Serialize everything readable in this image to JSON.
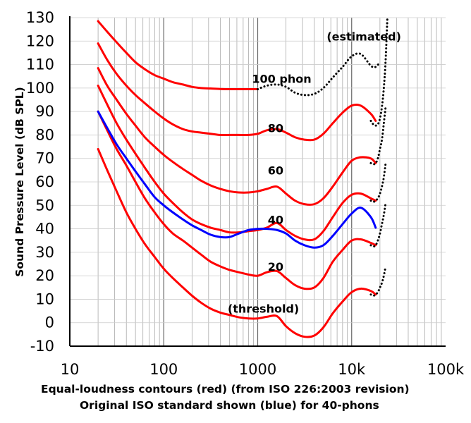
{
  "chart_data": {
    "type": "line",
    "xlabel": "Equal-loudness contours (red) (from ISO 226:2003 revision)",
    "xlabel_line2": "Original ISO standard shown (blue) for 40-phons",
    "ylabel": "Sound Pressure Level (dB SPL)",
    "x_scale": "log",
    "xlim": [
      10,
      100000
    ],
    "ylim": [
      -10,
      130
    ],
    "x_ticks": [
      10,
      100,
      1000,
      10000,
      100000
    ],
    "x_tick_labels": [
      "10",
      "100",
      "1000",
      "10k",
      "100k"
    ],
    "y_ticks": [
      -10,
      0,
      10,
      20,
      30,
      40,
      50,
      60,
      70,
      80,
      90,
      100,
      110,
      120,
      130
    ],
    "y_tick_labels": [
      "-10",
      "0",
      "10",
      "20",
      "30",
      "40",
      "50",
      "60",
      "70",
      "80",
      "90",
      "100",
      "110",
      "120",
      "130"
    ],
    "grid": true,
    "annotations": [
      {
        "text": "(estimated)",
        "x": 13500,
        "y": 122
      },
      {
        "text": "100 phon",
        "x": 1800,
        "y": 104
      },
      {
        "text": "80",
        "x": 1550,
        "y": 83
      },
      {
        "text": "60",
        "x": 1550,
        "y": 65
      },
      {
        "text": "40",
        "x": 1550,
        "y": 44
      },
      {
        "text": "20",
        "x": 1550,
        "y": 24
      },
      {
        "text": "(threshold)",
        "x": 1150,
        "y": 6
      }
    ],
    "series": [
      {
        "name": "",
        "color": "#ff0000",
        "style": "solid",
        "x": [
          20,
          25,
          31.5,
          40,
          50,
          63,
          80,
          100,
          125,
          160,
          200,
          250,
          315,
          400,
          500,
          630,
          800,
          1000,
          1250,
          1600,
          2000,
          2500,
          3150,
          4000,
          5000,
          6300,
          8000,
          10000,
          12500,
          16000,
          18000
        ],
        "y": [
          74,
          65,
          56,
          47,
          40,
          33.5,
          28,
          23,
          19,
          15,
          11.5,
          8.5,
          6,
          4.3,
          3.3,
          2.3,
          1.8,
          1.8,
          2.5,
          2.8,
          -1.5,
          -4.5,
          -6,
          -5.5,
          -2,
          4,
          9,
          13,
          14.5,
          13.5,
          12
        ]
      },
      {
        "name": "",
        "color": "#ff0000",
        "style": "solid",
        "x": [
          20,
          25,
          31.5,
          40,
          50,
          63,
          80,
          100,
          125,
          160,
          200,
          250,
          315,
          400,
          500,
          630,
          800,
          1000,
          1250,
          1600,
          2000,
          2500,
          3150,
          4000,
          5000,
          6300,
          8000,
          10000,
          12500,
          16000,
          18000
        ],
        "y": [
          90,
          82,
          74,
          67,
          60,
          53,
          47,
          42,
          38,
          35,
          32,
          29,
          26,
          24,
          22.5,
          21.5,
          20.5,
          20,
          21.5,
          22,
          19,
          16,
          14.5,
          15,
          19,
          26,
          31,
          35,
          35.5,
          34,
          33
        ]
      },
      {
        "name": "",
        "color": "#ff0000",
        "style": "solid",
        "x": [
          20,
          25,
          31.5,
          40,
          50,
          63,
          80,
          100,
          125,
          160,
          200,
          250,
          315,
          400,
          500,
          630,
          800,
          1000,
          1250,
          1600,
          2000,
          2500,
          3150,
          4000,
          5000,
          6300,
          8000,
          10000,
          12500,
          16000,
          18000
        ],
        "y": [
          101,
          93,
          85,
          78,
          72,
          66,
          60,
          55,
          51,
          47,
          44,
          42,
          40.5,
          39.5,
          38.5,
          38.5,
          39,
          39.5,
          40.5,
          42.5,
          39.5,
          37,
          35.5,
          35.5,
          39,
          45,
          51,
          54.5,
          55,
          53,
          52
        ]
      },
      {
        "name": "",
        "color": "#ff0000",
        "style": "solid",
        "x": [
          20,
          25,
          31.5,
          40,
          50,
          63,
          80,
          100,
          125,
          160,
          200,
          250,
          315,
          400,
          500,
          630,
          800,
          1000,
          1250,
          1600,
          2000,
          2500,
          3150,
          4000,
          5000,
          6300,
          8000,
          10000,
          12500,
          16000,
          18000
        ],
        "y": [
          108.5,
          101,
          95,
          89,
          84,
          79,
          75,
          71.5,
          68.5,
          65.5,
          63,
          60.5,
          58.5,
          57,
          56,
          55.5,
          55.5,
          56,
          57,
          58,
          55,
          52,
          50.5,
          50.5,
          53,
          58,
          64,
          69,
          70.5,
          70,
          68
        ]
      },
      {
        "name": "",
        "color": "#ff0000",
        "style": "solid",
        "x": [
          20,
          25,
          31.5,
          40,
          50,
          63,
          80,
          100,
          125,
          160,
          200,
          250,
          315,
          400,
          500,
          630,
          800,
          1000,
          1250,
          1600,
          2000,
          2500,
          3150,
          4000,
          5000,
          6300,
          8000,
          10000,
          12500,
          16000,
          18000
        ],
        "y": [
          119,
          112,
          106,
          101,
          97,
          93.5,
          90,
          87,
          84.5,
          82.5,
          81.5,
          81,
          80.5,
          80,
          80,
          80,
          80,
          80.5,
          82,
          82.5,
          81,
          79,
          78,
          78,
          80.5,
          85,
          89.5,
          92.5,
          92.5,
          89,
          86
        ]
      },
      {
        "name": "",
        "color": "#ff0000",
        "style": "solid",
        "x": [
          20,
          25,
          31.5,
          40,
          50,
          63,
          80,
          100,
          125,
          160,
          200,
          250,
          315,
          400,
          500,
          630,
          800,
          1000
        ],
        "y": [
          128.5,
          124,
          119.5,
          115,
          111,
          108,
          105.5,
          104,
          102.5,
          101.5,
          100.5,
          100,
          99.8,
          99.6,
          99.5,
          99.5,
          99.5,
          99.5
        ]
      },
      {
        "name": "",
        "color": "#000000",
        "style": "dotted",
        "x": [
          1000,
          1250,
          1600,
          2000,
          2500,
          3150,
          4000,
          5000,
          6300,
          8000,
          10000,
          12500,
          16000,
          18000,
          20000
        ],
        "y": [
          99.5,
          101,
          101.5,
          100.5,
          98,
          97,
          97.5,
          100,
          104.5,
          109,
          113.5,
          114.5,
          109.5,
          109,
          111
        ]
      },
      {
        "name": "",
        "color": "#000000",
        "style": "dotted",
        "x": [
          16000,
          17000,
          18000,
          19000,
          20000,
          21000,
          22000,
          23000,
          24000
        ],
        "y": [
          86,
          84.5,
          84,
          84.5,
          87,
          92,
          100,
          112,
          130
        ]
      },
      {
        "name": "",
        "color": "#000000",
        "style": "dotted",
        "x": [
          16000,
          17000,
          18000,
          19000,
          20000,
          21000,
          22000,
          23000
        ],
        "y": [
          68,
          67.5,
          68,
          70,
          74,
          78,
          85,
          92
        ]
      },
      {
        "name": "",
        "color": "#000000",
        "style": "dotted",
        "x": [
          16000,
          17000,
          18000,
          19000,
          20000,
          21000,
          22000,
          23000
        ],
        "y": [
          52,
          51.5,
          52,
          53,
          55,
          58,
          62,
          68
        ]
      },
      {
        "name": "",
        "color": "#000000",
        "style": "dotted",
        "x": [
          16000,
          17000,
          18000,
          19000,
          20000,
          21000,
          22000,
          23000
        ],
        "y": [
          33,
          32.5,
          33,
          35,
          38,
          42,
          46,
          51
        ]
      },
      {
        "name": "",
        "color": "#000000",
        "style": "dotted",
        "x": [
          16000,
          17000,
          18000,
          19000,
          20000,
          21000,
          22000,
          23000
        ],
        "y": [
          12,
          11.5,
          12,
          13,
          15,
          17,
          20,
          24
        ]
      },
      {
        "name": "",
        "color": "#0000ff",
        "style": "solid",
        "x": [
          20,
          25,
          31.5,
          40,
          50,
          63,
          80,
          100,
          125,
          160,
          200,
          250,
          315,
          400,
          500,
          630,
          800,
          1000,
          1250,
          1600,
          2000,
          2500,
          3150,
          4000,
          5000,
          6300,
          8000,
          10000,
          12500,
          16000,
          18000
        ],
        "y": [
          90,
          83,
          76,
          70,
          64.5,
          59,
          53.5,
          50,
          47,
          44,
          41.5,
          39.5,
          37.5,
          36.5,
          36.5,
          38,
          39.5,
          40,
          40,
          39.5,
          38,
          35,
          33,
          32,
          33,
          37,
          42,
          46.5,
          49,
          45,
          40.5
        ]
      }
    ]
  }
}
